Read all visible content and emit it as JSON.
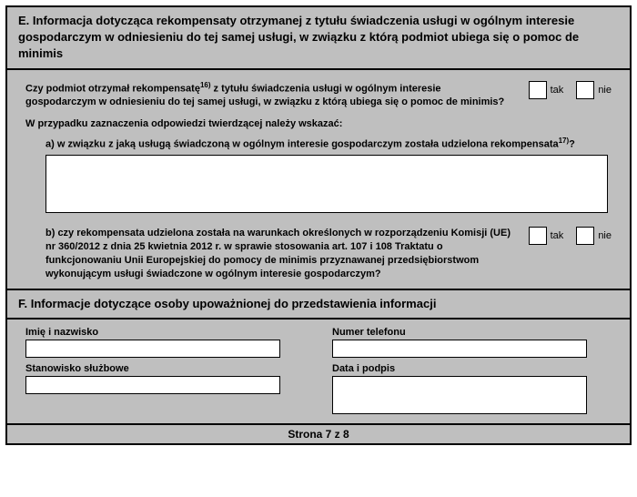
{
  "sectionE": {
    "title": "E. Informacja dotycząca rekompensaty otrzymanej z tytułu świadczenia usługi w ogólnym interesie gospodarczym w odniesieniu do tej samej usługi, w związku z którą podmiot ubiega się o pomoc de minimis",
    "q1_pre": "Czy podmiot otrzymał rekompensatę",
    "q1_sup": "16)",
    "q1_post": " z tytułu świadczenia usługi w ogólnym interesie gospodarczym w odniesieniu do tej samej usługi, w związku z którą ubiega się o pomoc de minimis?",
    "yes": "tak",
    "no": "nie",
    "instr": "W przypadku zaznaczenia odpowiedzi twierdzącej należy wskazać:",
    "a_pre": "a) w związku z jaką usługą świadczoną w ogólnym interesie gospodarczym została udzielona rekompensata",
    "a_sup": "17)",
    "a_post": "?",
    "b": "b) czy rekompensata udzielona została na warunkach określonych w rozporządzeniu Komisji (UE) nr 360/2012 z dnia 25 kwietnia 2012 r. w sprawie stosowania art. 107 i 108 Traktatu o funkcjonowaniu Unii Europejskiej do pomocy de minimis przyznawanej przedsiębiorstwom wykonującym usługi świadczone w ogólnym interesie gospodarczym?"
  },
  "sectionF": {
    "title": "F. Informacje dotyczące osoby upoważnionej do przedstawienia informacji",
    "name_label": "Imię i nazwisko",
    "position_label": "Stanowisko służbowe",
    "phone_label": "Numer telefonu",
    "date_sig_label": "Data i podpis"
  },
  "footer": "Strona 7 z 8"
}
